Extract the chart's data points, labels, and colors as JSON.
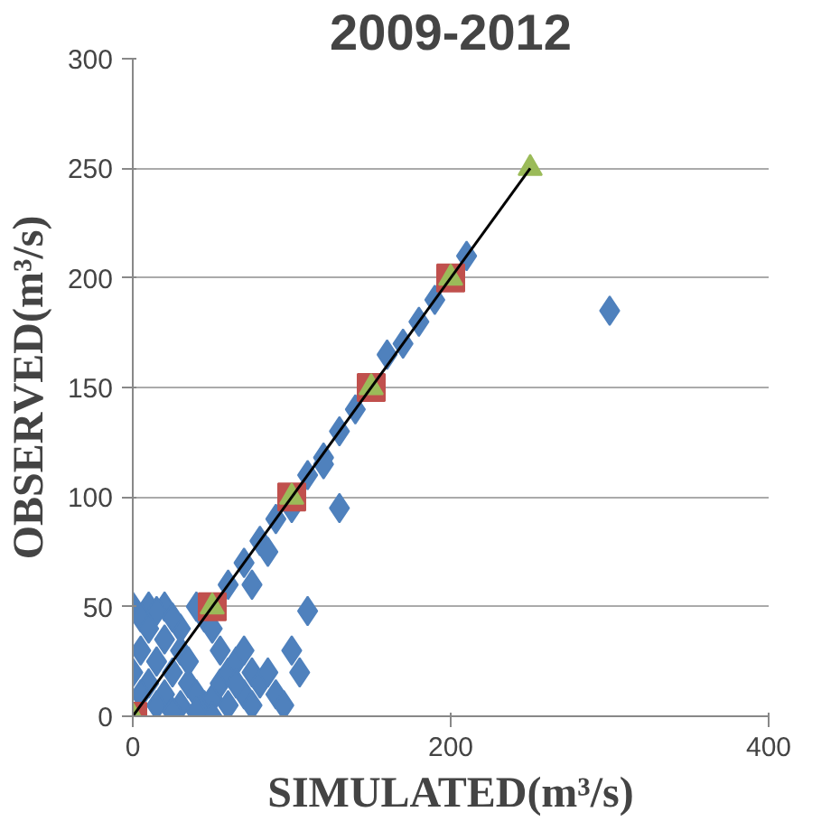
{
  "chart_data": {
    "type": "scatter",
    "title": "2009-2012",
    "xlabel": "SIMULATED(m³/s)",
    "ylabel": "OBSERVED(m³/s)",
    "xlim": [
      0,
      400
    ],
    "xticks": [
      0,
      200,
      400
    ],
    "ylim": [
      0,
      300
    ],
    "yticks": [
      0,
      50,
      100,
      150,
      200,
      250,
      300
    ],
    "grid": "y",
    "series": [
      {
        "marker": "diamond",
        "color": "#4f81bd",
        "x": [
          60,
          70,
          80,
          90,
          100,
          110,
          120,
          130,
          140,
          160,
          170,
          180,
          190,
          210,
          300,
          130,
          120,
          75,
          85,
          110,
          100,
          105,
          90,
          95,
          40,
          45,
          50,
          30,
          20,
          10,
          0,
          5,
          15,
          25,
          10,
          20,
          30,
          5,
          15,
          25,
          35,
          40,
          45,
          50,
          55,
          60,
          65,
          70,
          75,
          80,
          70,
          60,
          50,
          40,
          30,
          20,
          10,
          0,
          5,
          15,
          25,
          35,
          55,
          65,
          85,
          75
        ],
        "values": [
          60,
          70,
          80,
          90,
          95,
          110,
          118,
          130,
          140,
          165,
          170,
          180,
          190,
          210,
          185,
          95,
          115,
          60,
          75,
          48,
          30,
          20,
          10,
          5,
          50,
          45,
          40,
          40,
          50,
          50,
          50,
          45,
          48,
          45,
          40,
          35,
          30,
          30,
          25,
          20,
          15,
          10,
          5,
          8,
          15,
          20,
          25,
          30,
          20,
          15,
          10,
          5,
          0,
          2,
          5,
          10,
          15,
          20,
          10,
          5,
          2,
          25,
          30,
          15,
          20,
          5
        ]
      },
      {
        "marker": "square",
        "color": "#c0504d",
        "x": [
          0,
          50,
          100,
          150,
          200
        ],
        "values": [
          0,
          50,
          100,
          150,
          200
        ]
      },
      {
        "marker": "triangle",
        "color": "#9bbb59",
        "x": [
          0,
          50,
          100,
          150,
          200,
          250
        ],
        "values": [
          0,
          50,
          100,
          150,
          200,
          250
        ]
      },
      {
        "type": "line",
        "color": "#000000",
        "x": [
          0,
          250
        ],
        "values": [
          0,
          250
        ]
      }
    ]
  }
}
